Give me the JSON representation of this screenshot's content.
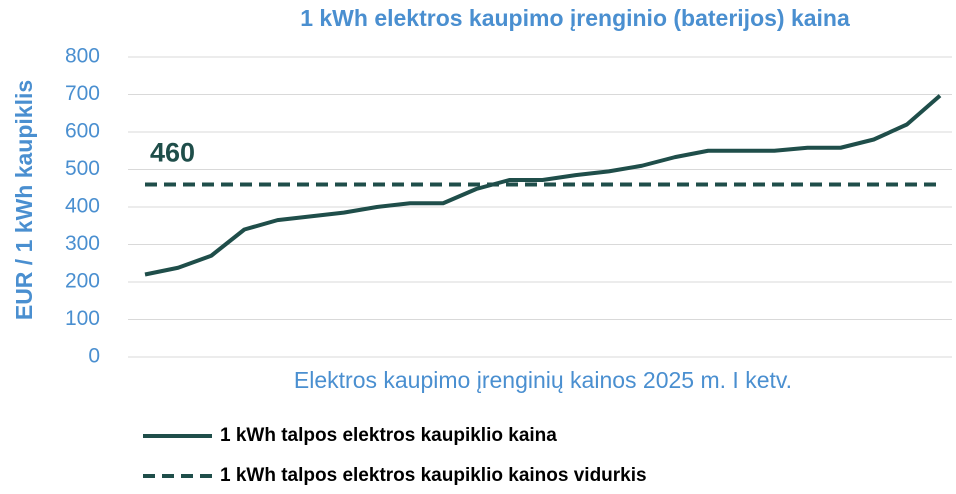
{
  "chart_data": {
    "type": "line",
    "title": "1 kWh elektros kaupimo įrenginio (baterijos) kaina",
    "y_label": "EUR / 1 kWh kaupiklis",
    "x_label": "Elektros kaupimo įrenginių kainos  2025 m. I ketv.",
    "categories": [
      null,
      null,
      null,
      null,
      null,
      null,
      null,
      null,
      null,
      null,
      null,
      null,
      null,
      null,
      null,
      null,
      null,
      null,
      null,
      null,
      null,
      null,
      null,
      null,
      null
    ],
    "series": [
      {
        "name": "1 kWh talpos elektros kaupiklio kaina",
        "color": "#1f4e4a",
        "dashed": false,
        "values": [
          220,
          238,
          270,
          340,
          365,
          375,
          385,
          400,
          410,
          410,
          448,
          472,
          472,
          485,
          495,
          510,
          533,
          550,
          550,
          550,
          558,
          558,
          580,
          620,
          697
        ]
      },
      {
        "name": "1 kWh talpos elektros kaupiklio kainos vidurkis",
        "color": "#1f4e4a",
        "dashed": true,
        "label": 460,
        "values": [
          460,
          460,
          460,
          460,
          460,
          460,
          460,
          460,
          460,
          460,
          460,
          460,
          460,
          460,
          460,
          460,
          460,
          460,
          460,
          460,
          460,
          460,
          460,
          460,
          460
        ]
      }
    ],
    "ylim": [
      0,
      800
    ],
    "yticks": [
      0,
      100,
      200,
      300,
      400,
      500,
      600,
      700,
      800
    ],
    "grid": true
  }
}
